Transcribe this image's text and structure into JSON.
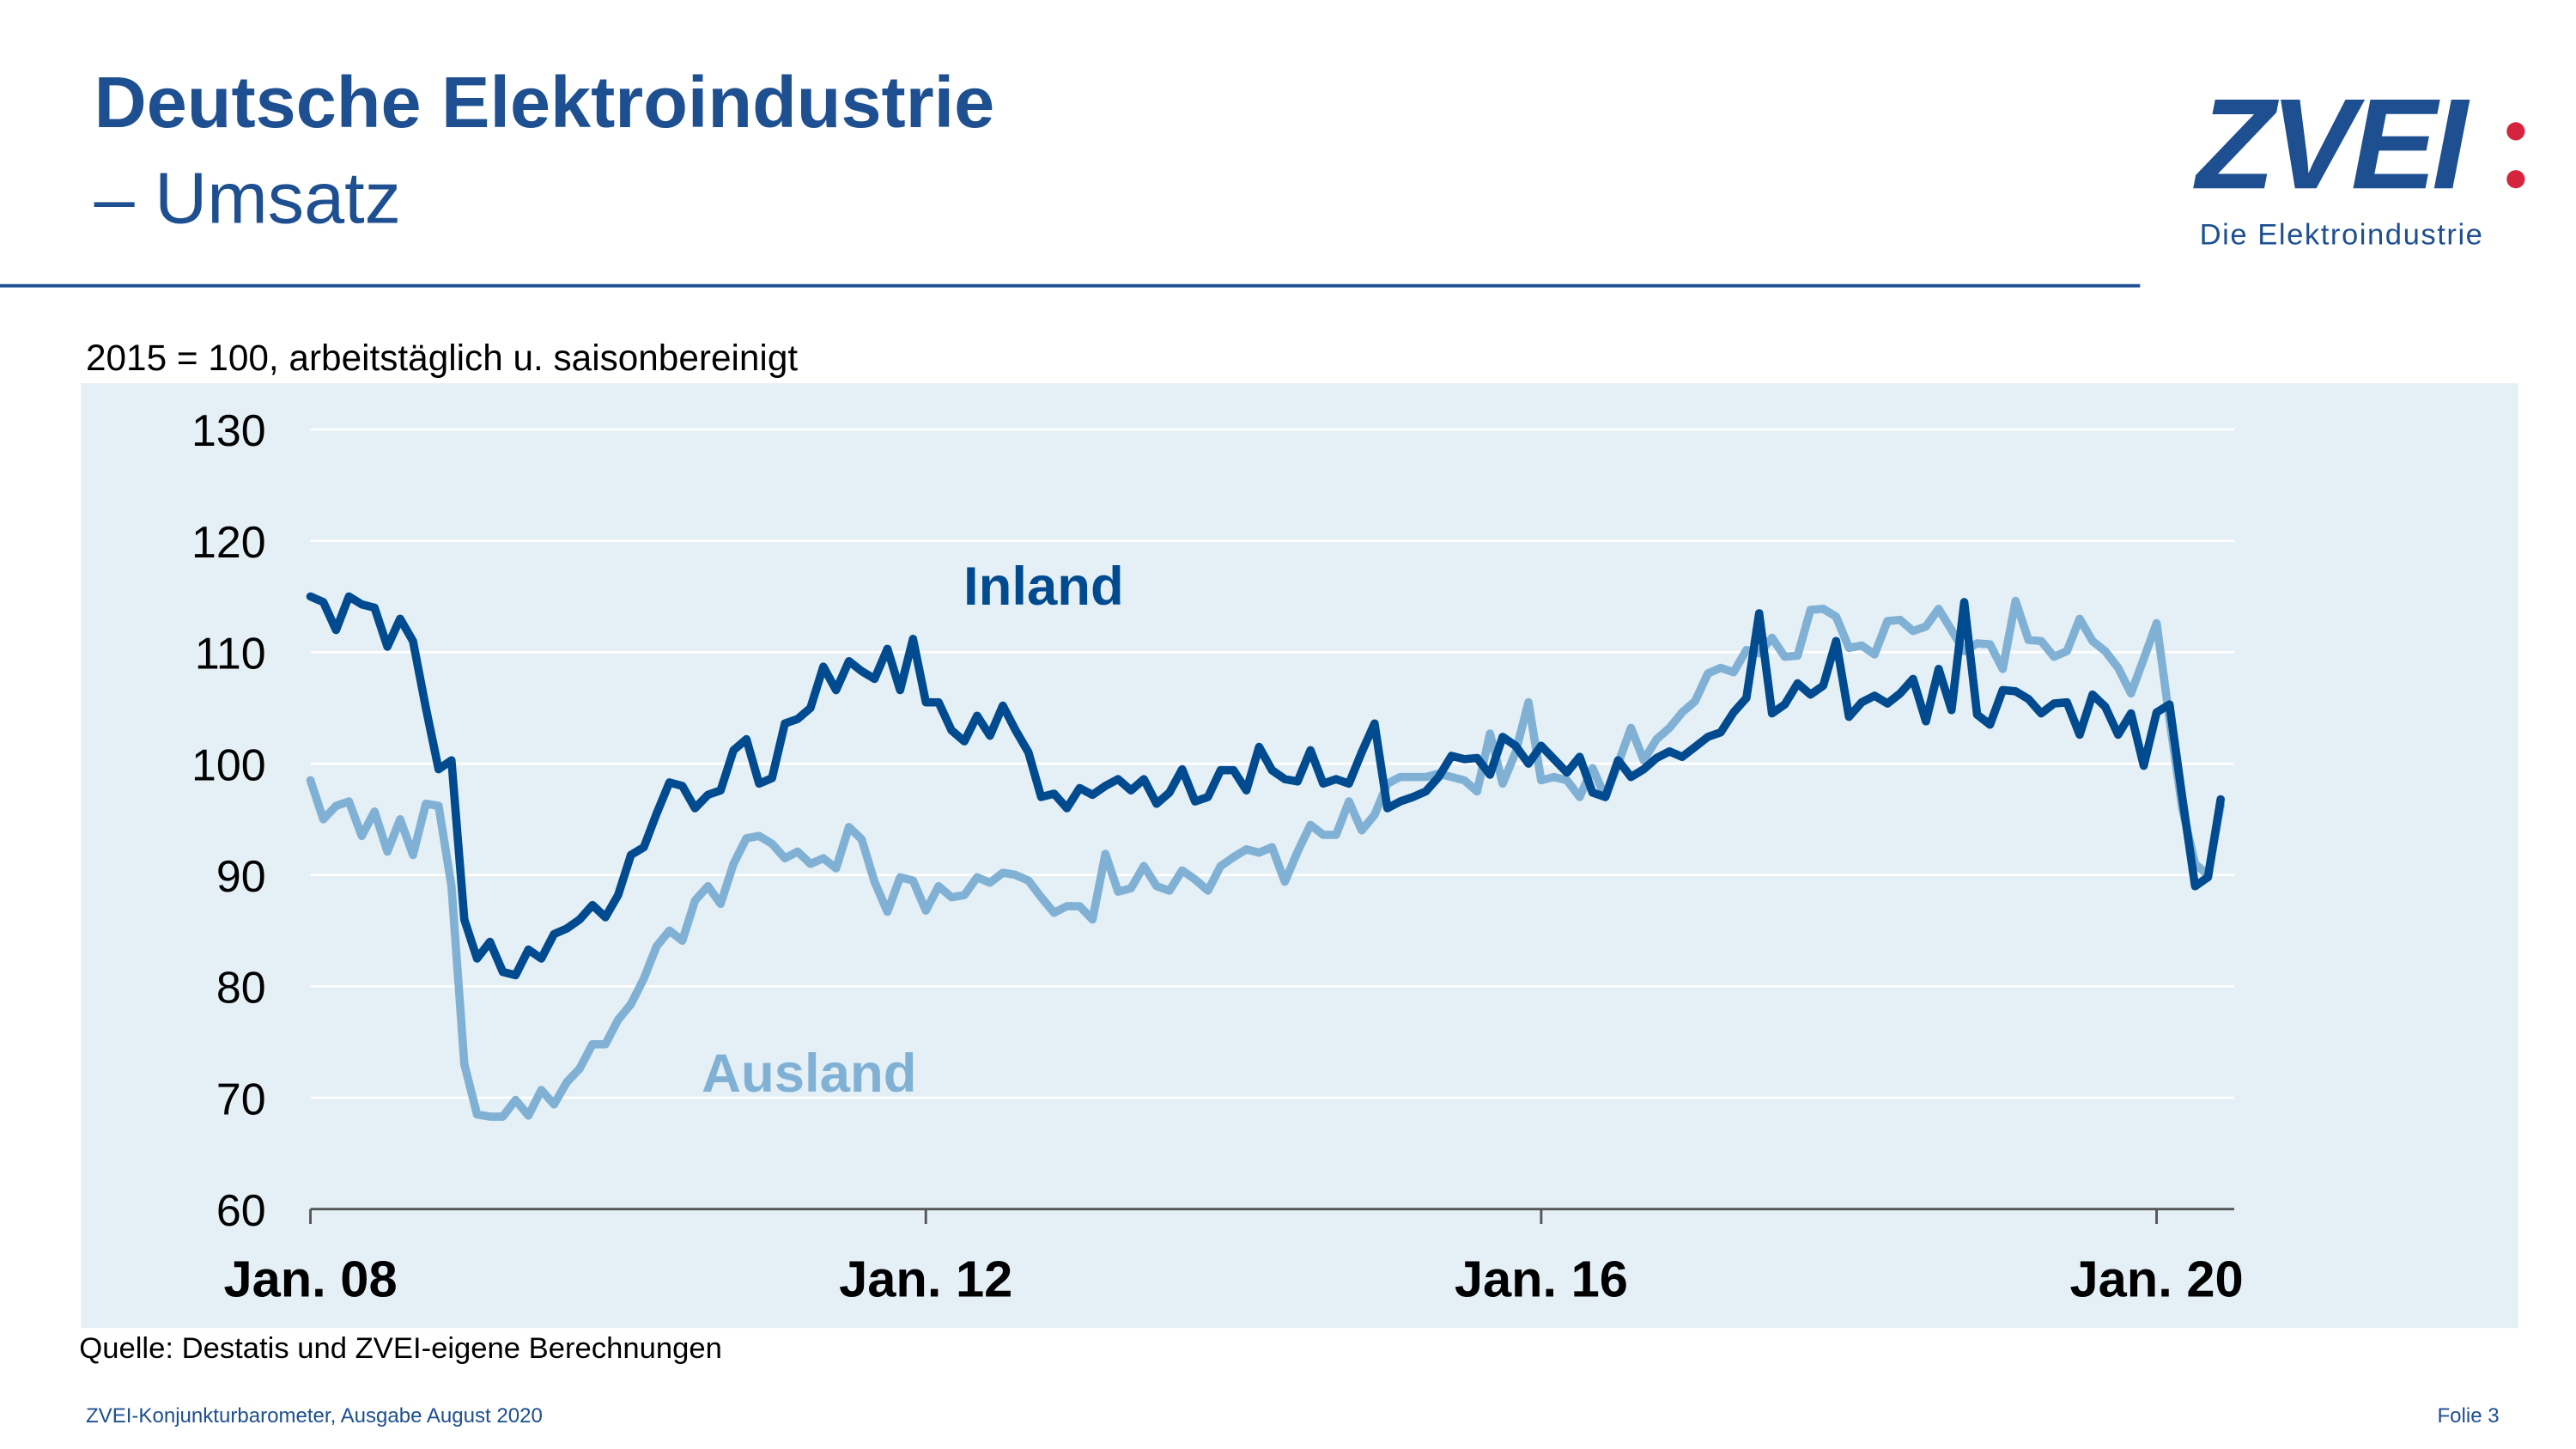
{
  "header": {
    "title": "Deutsche Elektroindustrie",
    "subtitle": "– Umsatz"
  },
  "logo": {
    "text": "ZVEI",
    "tagline": "Die Elektroindustrie",
    "colors": {
      "brand": "#1d4f91",
      "dots": "#d6243f"
    }
  },
  "note": "2015 = 100, arbeitstäglich u. saisonbereinigt",
  "source": "Quelle: Destatis und ZVEI-eigene Berechnungen",
  "footer": {
    "left": "ZVEI-Konjunkturbarometer, Ausgabe August 2020",
    "right": "Folie 3"
  },
  "chart_data": {
    "type": "line",
    "title": "",
    "xlabel": "",
    "ylabel": "",
    "x_start": "2008-01",
    "x_end": "2020-06",
    "x_frequency": "monthly",
    "ylim": [
      60,
      130
    ],
    "yticks": [
      "60",
      "70",
      "80",
      "90",
      "100",
      "110",
      "120",
      "130"
    ],
    "xticks": [
      "Jan. 08",
      "Jan. 12",
      "Jan. 16",
      "Jan. 20"
    ],
    "grid": true,
    "background": "#e4eff6",
    "legend": "inline labels",
    "series": [
      {
        "name": "Inland",
        "color": "#004a8f",
        "values": [
          115,
          114.5,
          112,
          115,
          114.3,
          114,
          110.5,
          113,
          111,
          105,
          99.5,
          100.3,
          86,
          82.5,
          84,
          81.3,
          81,
          83.3,
          82.5,
          84.7,
          85.2,
          86,
          87.3,
          86.2,
          88.2,
          91.8,
          92.5,
          95.5,
          98.3,
          98,
          96,
          97.2,
          97.6,
          101.2,
          102.2,
          98.2,
          98.7,
          103.6,
          104,
          105,
          108.7,
          106.6,
          109.2,
          108.3,
          107.6,
          110.3,
          106.6,
          111.2,
          105.5,
          105.5,
          103,
          102,
          104.3,
          102.5,
          105.2,
          103,
          101,
          97,
          97.3,
          96,
          97.8,
          97.2,
          98,
          98.6,
          97.6,
          98.6,
          96.4,
          97.4,
          99.5,
          96.6,
          97,
          99.4,
          99.4,
          97.6,
          101.5,
          99.4,
          98.6,
          98.4,
          101.2,
          98.2,
          98.6,
          98.2,
          101,
          103.6,
          96,
          96.6,
          97,
          97.5,
          98.8,
          100.7,
          100.4,
          100.5,
          99,
          102.4,
          101.6,
          100,
          101.6,
          100.4,
          99.2,
          100.6,
          97.4,
          97,
          100.3,
          98.8,
          99.5,
          100.5,
          101.1,
          100.6,
          101.5,
          102.4,
          102.8,
          104.6,
          105.9,
          113.5,
          104.5,
          105.3,
          107.2,
          106.2,
          107,
          111,
          104.2,
          105.5,
          106.1,
          105.4,
          106.3,
          107.6,
          103.8,
          108.5,
          104.8,
          114.5,
          104.4,
          103.5,
          106.6,
          106.5,
          105.8,
          104.5,
          105.4,
          105.5,
          102.6,
          106.2,
          105.1,
          102.6,
          104.5,
          99.8,
          104.6,
          105.3,
          97,
          89,
          89.8,
          96.8
        ]
      },
      {
        "name": "Ausland",
        "color": "#80b1d5",
        "values": [
          98.5,
          95,
          96.2,
          96.6,
          93.5,
          95.7,
          92.1,
          95,
          91.8,
          96.4,
          96.2,
          89,
          73,
          68.5,
          68.3,
          68.3,
          69.8,
          68.4,
          70.7,
          69.4,
          71.4,
          72.6,
          74.8,
          74.8,
          77,
          78.4,
          80.7,
          83.6,
          85,
          84.1,
          87.7,
          89,
          87.4,
          91,
          93.3,
          93.5,
          92.8,
          91.5,
          92.1,
          91,
          91.5,
          90.6,
          94.3,
          93.2,
          89.4,
          86.7,
          89.8,
          89.5,
          86.8,
          89,
          88,
          88.2,
          89.8,
          89.3,
          90.2,
          90,
          89.5,
          88,
          86.6,
          87.2,
          87.2,
          86,
          91.9,
          88.5,
          88.8,
          90.8,
          89,
          88.6,
          90.4,
          89.6,
          88.6,
          90.8,
          91.6,
          92.3,
          92,
          92.5,
          89.4,
          92.1,
          94.5,
          93.6,
          93.6,
          96.6,
          94,
          95.4,
          98.2,
          98.8,
          98.8,
          98.8,
          99.1,
          98.8,
          98.5,
          97.5,
          102.7,
          98.2,
          101,
          105.5,
          98.5,
          98.8,
          98.5,
          97,
          99.6,
          97,
          100,
          103.2,
          100.3,
          102.2,
          103.2,
          104.6,
          105.6,
          108.1,
          108.6,
          108.2,
          110.2,
          109.9,
          111.3,
          109.6,
          109.7,
          113.8,
          113.9,
          113.2,
          110.4,
          110.6,
          109.8,
          112.8,
          112.9,
          111.9,
          112.3,
          113.9,
          112,
          110.1,
          110.8,
          110.7,
          108.5,
          114.6,
          111.1,
          111,
          109.6,
          110.1,
          113,
          111,
          110.1,
          108.6,
          106.3,
          109.4,
          112.6,
          104,
          96,
          91,
          90,
          96.3
        ]
      }
    ]
  }
}
